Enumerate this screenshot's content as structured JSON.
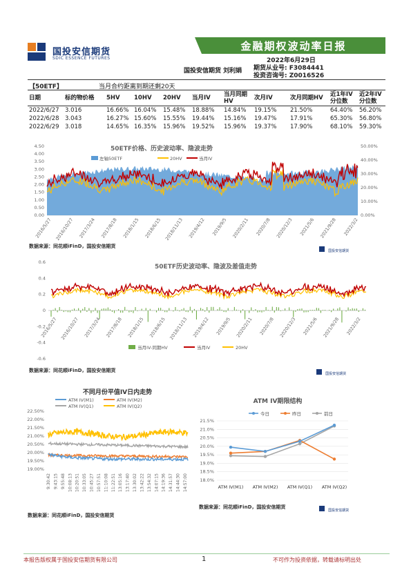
{
  "header": {
    "logo_cn": "国投安信期货",
    "logo_en": "SDIC ESSENCE FUTURES",
    "report_title": "金融期权波动率日报",
    "date": "2022年6月29日",
    "author": "国投安信期货 刘利娟",
    "license1": "期货从业号: F3084441",
    "license2": "投资咨询号: Z0016526"
  },
  "table": {
    "tag": "【50ETF】",
    "note": "当月合约距离到期还剩20天",
    "headers": [
      "日期",
      "标的物价格",
      "5HV",
      "10HV",
      "20HV",
      "当月IV",
      "当月同期HV",
      "次月IV",
      "次月同期HV",
      "近1年IV分位数",
      "近2年IV分位数"
    ],
    "rows": [
      [
        "2022/6/27",
        "3.016",
        "16.66%",
        "16.04%",
        "15.48%",
        "18.88%",
        "14.84%",
        "19.15%",
        "21.50%",
        "64.40%",
        "56.20%"
      ],
      [
        "2022/6/28",
        "3.043",
        "16.27%",
        "15.60%",
        "15.55%",
        "19.44%",
        "15.16%",
        "19.47%",
        "17.91%",
        "65.30%",
        "56.80%"
      ],
      [
        "2022/6/29",
        "3.018",
        "14.65%",
        "16.35%",
        "15.96%",
        "19.52%",
        "15.96%",
        "19.37%",
        "17.90%",
        "68.10%",
        "59.30%"
      ]
    ]
  },
  "source_text": "数据来源：同花顺iFinD，国投安信期货",
  "chart1": {
    "title": "50ETF价格、历史波动率、隐波走势",
    "legend": [
      "左轴50ETF",
      "20HV",
      "当月IV"
    ],
    "left_ticks": [
      "0.00",
      "0.50",
      "1.00",
      "1.50",
      "2.00",
      "2.50",
      "3.00",
      "3.50",
      "4.00",
      "4.50"
    ],
    "right_ticks": [
      "0.00%",
      "10.00%",
      "20.00%",
      "30.00%",
      "40.00%",
      "50.00%"
    ],
    "x_ticks": [
      "2016/5/27",
      "2016/10/27",
      "2017/3/24",
      "2017/8/18",
      "2018/1/15",
      "2018/6/15",
      "2018/11/13",
      "2019/4/12",
      "2019/9/5",
      "2020/2/11",
      "2020/7/8",
      "2020/12/3",
      "2021/5/6",
      "2021/9/28",
      "2022/3/2"
    ]
  },
  "chart2": {
    "title": "50ETF历史波动率、隐波及差值走势",
    "legend": [
      "当月IV-同期HV",
      "当月IV",
      "20HV"
    ],
    "y_ticks": [
      "-0.6",
      "-0.4",
      "-0.2",
      "0",
      "0.2",
      "0.4",
      "0.6"
    ],
    "x_ticks": [
      "2016/5/27",
      "2016/10/27",
      "2017/3/24",
      "2017/8/18",
      "2018/1/15",
      "2018/6/15",
      "2018/11/13",
      "2019/4/12",
      "2019/9/5",
      "2020/2/11",
      "2020/7/8",
      "2020/12/3",
      "2021/5/6",
      "2021/9/28",
      "2022/3/2"
    ]
  },
  "chart3": {
    "title": "不同月份平值IV日内走势",
    "legend": [
      "ATM IV(M1)",
      "ATM IV(M2)",
      "ATM IV(Q1)",
      "ATM IV(Q2)"
    ],
    "y_ticks": [
      "19.00%",
      "19.50%",
      "20.00%",
      "20.50%",
      "21.00%",
      "21.50%",
      "22.00%",
      "22.50%"
    ],
    "x_ticks": [
      "9:30:42",
      "9:43:15",
      "9:55:48",
      "10:08:13",
      "10:20:51",
      "10:33:05",
      "10:45:27",
      "10:57:51",
      "11:10:08",
      "11:22:51",
      "13:05:16",
      "13:17:40",
      "13:30:02",
      "13:42:22",
      "13:54:32",
      "14:07:15",
      "14:19:36",
      "14:31:57",
      "14:44:30",
      "14:57:00"
    ]
  },
  "chart_data": [
    {
      "type": "line",
      "title": "ATM IV期限结构",
      "categories": [
        "ATM IV(M1)",
        "ATM IV(M2)",
        "ATM IV(Q1)",
        "ATM IV(Q2)"
      ],
      "series": [
        {
          "name": "今日",
          "values": [
            19.95,
            19.7,
            20.3,
            21.25
          ]
        },
        {
          "name": "昨日",
          "values": [
            19.6,
            19.7,
            20.35,
            19.25
          ]
        },
        {
          "name": "前日",
          "values": [
            19.45,
            19.4,
            20.15,
            21.2
          ]
        }
      ],
      "y_ticks": [
        "18.0%",
        "18.5%",
        "19.0%",
        "19.5%",
        "20.0%",
        "20.5%",
        "21.0%",
        "21.5%"
      ],
      "ylim": [
        18.0,
        21.5
      ]
    }
  ],
  "minilogo": "国投安信期货",
  "footer": {
    "left": "本报告版权属于国投安信期货有限公司",
    "page": "1",
    "right": "不可作为投资依据，转载请标明出处"
  },
  "colors": {
    "green": "#4a8f3a",
    "blue": "#5b9bd5",
    "orange": "#ffc000",
    "red": "#c00000",
    "gray": "#a5a5a5",
    "orange2": "#ed7d31"
  }
}
